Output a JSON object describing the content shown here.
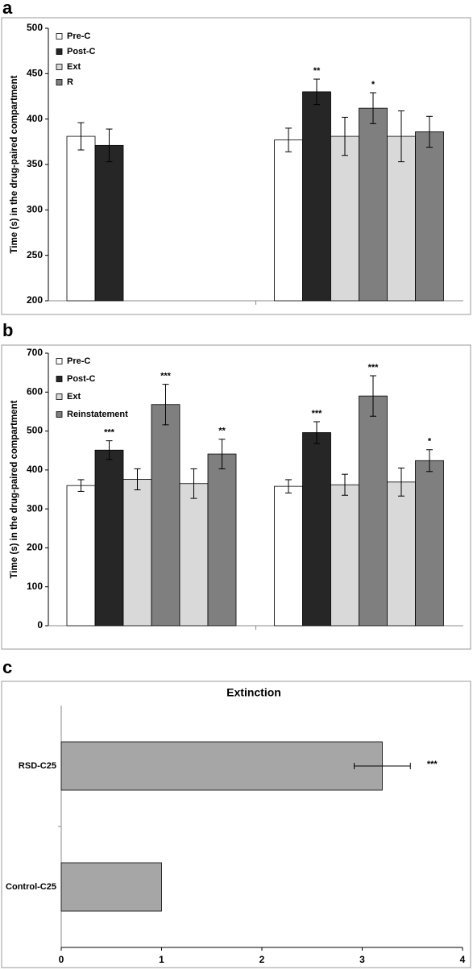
{
  "chart_data": [
    {
      "type": "grouped-bar",
      "panel_label": "a",
      "ylabel": "Time (s) in the drug-paired compartment",
      "ylim": [
        200,
        500
      ],
      "yticks": [
        200,
        250,
        300,
        350,
        400,
        450,
        500
      ],
      "legend": "top-left",
      "series": [
        {
          "name": "Pre-C",
          "color": "#ffffff"
        },
        {
          "name": "Post-C",
          "color": "#262626"
        },
        {
          "name": "Ext",
          "color": "#d9d9d9"
        },
        {
          "name": "R",
          "color": "#7f7f7f"
        }
      ],
      "groups": [
        {
          "bars": [
            {
              "series": 0,
              "value": 381,
              "error": 15
            },
            {
              "series": 1,
              "value": 371,
              "error": 18
            }
          ]
        },
        {
          "bars": [
            {
              "series": 0,
              "value": 377,
              "error": 13
            },
            {
              "series": 1,
              "value": 430,
              "error": 14,
              "label": "**"
            },
            {
              "series": 2,
              "value": 381,
              "error": 21
            },
            {
              "series": 3,
              "value": 412,
              "error": 17,
              "label": "*"
            },
            {
              "series": 2,
              "value": 381,
              "error": 28
            },
            {
              "series": 3,
              "value": 386,
              "error": 17
            }
          ]
        }
      ]
    },
    {
      "type": "grouped-bar",
      "panel_label": "b",
      "ylabel": "Time (s) in the drug-paired compartment",
      "ylim": [
        0,
        700
      ],
      "yticks": [
        0,
        100,
        200,
        300,
        400,
        500,
        600,
        700
      ],
      "legend": "top-left",
      "series": [
        {
          "name": "Pre-C",
          "color": "#ffffff"
        },
        {
          "name": "Post-C",
          "color": "#262626"
        },
        {
          "name": "Ext",
          "color": "#d9d9d9"
        },
        {
          "name": "Reinstatement",
          "color": "#7f7f7f"
        }
      ],
      "groups": [
        {
          "bars": [
            {
              "series": 0,
              "value": 360,
              "error": 15
            },
            {
              "series": 1,
              "value": 451,
              "error": 24,
              "label": "***"
            },
            {
              "series": 2,
              "value": 376,
              "error": 27
            },
            {
              "series": 3,
              "value": 568,
              "error": 52,
              "label": "***"
            },
            {
              "series": 2,
              "value": 365,
              "error": 38
            },
            {
              "series": 3,
              "value": 441,
              "error": 38,
              "label": "**"
            }
          ]
        },
        {
          "bars": [
            {
              "series": 0,
              "value": 358,
              "error": 17
            },
            {
              "series": 1,
              "value": 496,
              "error": 28,
              "label": "***"
            },
            {
              "series": 2,
              "value": 362,
              "error": 27
            },
            {
              "series": 3,
              "value": 590,
              "error": 52,
              "label": "***"
            },
            {
              "series": 2,
              "value": 369,
              "error": 36
            },
            {
              "series": 3,
              "value": 424,
              "error": 28,
              "label": "*"
            }
          ]
        }
      ]
    },
    {
      "type": "hbar",
      "panel_label": "c",
      "title": "Extinction",
      "categories": [
        "RSD-C25",
        "Control-C25"
      ],
      "values": [
        3.2,
        1
      ],
      "errors": [
        0.28,
        null
      ],
      "annotations": [
        "***",
        null
      ],
      "color": "#a6a6a6",
      "xlim": [
        0,
        4
      ],
      "xticks": [
        0,
        1,
        2,
        3,
        4
      ]
    }
  ]
}
